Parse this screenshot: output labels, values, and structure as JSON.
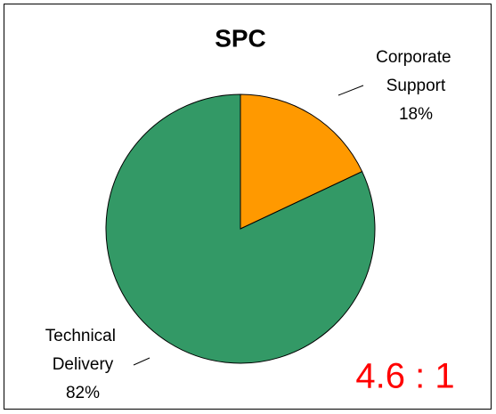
{
  "chart_data": {
    "type": "pie",
    "title": "SPC",
    "categories": [
      "Corporate Support",
      "Technical Delivery"
    ],
    "values": [
      18,
      82
    ],
    "value_labels": [
      "18%",
      "82%"
    ],
    "colors": [
      "#FF9900",
      "#339966"
    ],
    "annotation": "4.6 : 1"
  }
}
